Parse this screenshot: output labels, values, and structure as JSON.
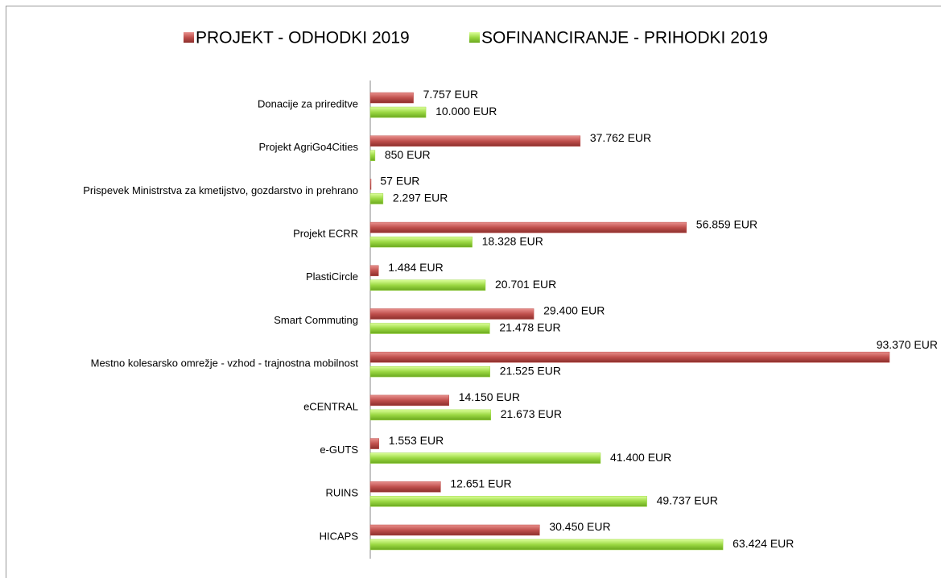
{
  "chart_data": {
    "type": "bar",
    "orientation": "horizontal",
    "categories": [
      "Donacije za prireditve",
      "Projekt AgriGo4Cities",
      "Prispevek Ministrstva za kmetijstvo, gozdarstvo in prehrano",
      "Projekt ECRR",
      "PlastiCircle",
      "Smart Commuting",
      "Mestno kolesarsko omrežje - vzhod - trajnostna mobilnost",
      "eCENTRAL",
      "e-GUTS",
      "RUINS",
      "HICAPS"
    ],
    "series": [
      {
        "name": "PROJEKT - ODHODKI 2019",
        "color": "#c0504d",
        "values": [
          7757,
          37762,
          57,
          56859,
          1484,
          29400,
          93370,
          14150,
          1553,
          12651,
          30450
        ],
        "value_labels": [
          "7.757 EUR",
          "37.762 EUR",
          "57 EUR",
          "56.859 EUR",
          "1.484 EUR",
          "29.400 EUR",
          "93.370 EUR",
          "14.150 EUR",
          "1.553 EUR",
          "12.651 EUR",
          "30.450 EUR"
        ]
      },
      {
        "name": "SOFINANCIRANJE - PRIHODKI 2019",
        "color": "#9bd843",
        "values": [
          10000,
          850,
          2297,
          18328,
          20701,
          21478,
          21525,
          21673,
          41400,
          49737,
          63424
        ],
        "value_labels": [
          "10.000 EUR",
          "850 EUR",
          "2.297 EUR",
          "18.328 EUR",
          "20.701 EUR",
          "21.478 EUR",
          "21.525 EUR",
          "21.673 EUR",
          "41.400 EUR",
          "49.737 EUR",
          "63.424 EUR"
        ]
      }
    ],
    "legend": "top"
  }
}
